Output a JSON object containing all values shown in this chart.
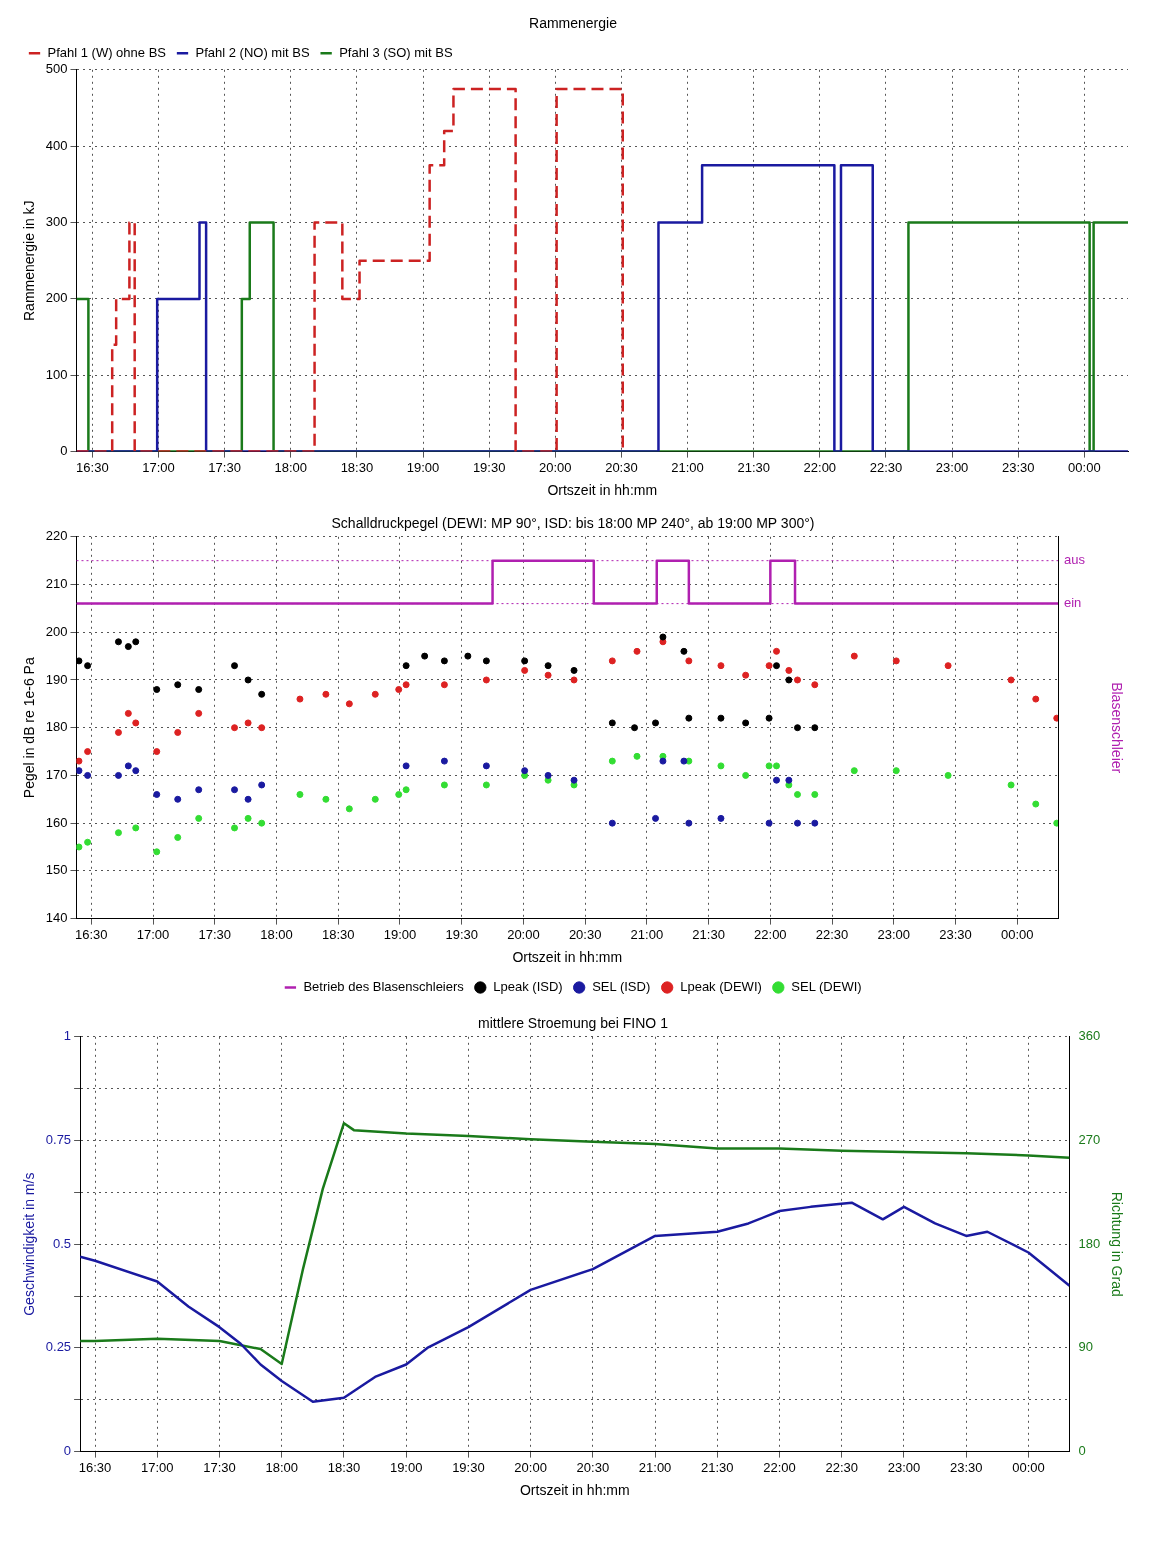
{
  "chart_data": [
    {
      "type": "step",
      "title": "Rammenergie",
      "xlabel": "Ortszeit in hh:mm",
      "ylabel": "Rammenergie in kJ",
      "xlim": [
        16.38,
        24.33
      ],
      "xticks": [
        {
          "value": 16.5,
          "label": "16:30"
        },
        {
          "value": 17,
          "label": "17:00"
        },
        {
          "value": 17.5,
          "label": "17:30"
        },
        {
          "value": 18,
          "label": "18:00"
        },
        {
          "value": 18.5,
          "label": "18:30"
        },
        {
          "value": 19,
          "label": "19:00"
        },
        {
          "value": 19.5,
          "label": "19:30"
        },
        {
          "value": 20,
          "label": "20:00"
        },
        {
          "value": 20.5,
          "label": "20:30"
        },
        {
          "value": 21,
          "label": "21:00"
        },
        {
          "value": 21.5,
          "label": "21:30"
        },
        {
          "value": 22,
          "label": "22:00"
        },
        {
          "value": 22.5,
          "label": "22:30"
        },
        {
          "value": 23,
          "label": "23:00"
        },
        {
          "value": 23.5,
          "label": "23:30"
        },
        {
          "value": 24,
          "label": "00:00"
        }
      ],
      "ylim": [
        0,
        500
      ],
      "yticks": [
        0,
        100,
        200,
        300,
        400,
        500
      ],
      "grid": true,
      "legend": "top left",
      "series": [
        {
          "name": "Pfahl 1 (W) ohne BS",
          "color": "#cc2222",
          "line_style": "dashed",
          "x": [
            16.38,
            16.65,
            16.68,
            16.78,
            16.82,
            18.18,
            18.39,
            18.52,
            19.05,
            19.16,
            19.23,
            19.7,
            20.01,
            20.51
          ],
          "values": [
            0,
            140,
            200,
            300,
            0,
            300,
            200,
            250,
            375,
            420,
            475,
            0,
            475,
            0
          ]
        },
        {
          "name": "Pfahl 2 (NO) mit BS",
          "color": "#1a1aa0",
          "x": [
            16.38,
            16.99,
            17.31,
            17.36,
            20.78,
            21.11,
            22.11,
            22.16,
            22.4,
            24.33
          ],
          "values": [
            0,
            200,
            300,
            0,
            300,
            375,
            0,
            375,
            0,
            0
          ]
        },
        {
          "name": "Pfahl 3 (SO) mit BS",
          "color": "#1a7a1a",
          "x": [
            16.38,
            16.47,
            17.63,
            17.69,
            17.87,
            22.67,
            24.04,
            24.07,
            24.33
          ],
          "values": [
            200,
            0,
            200,
            300,
            0,
            300,
            0,
            300,
            300
          ]
        }
      ]
    },
    {
      "type": "scatter",
      "title": "Schalldruckpegel (DEWI: MP 90°, ISD: bis 18:00 MP 240°, ab 19:00 MP 300°)",
      "xlabel": "Ortszeit in hh:mm",
      "ylabel": "Pegel in dB re 1e-6 Pa",
      "y2label": "Blasenschleier",
      "xlim": [
        16.38,
        24.33
      ],
      "xticks": [
        {
          "value": 16.5,
          "label": "16:30"
        },
        {
          "value": 17,
          "label": "17:00"
        },
        {
          "value": 17.5,
          "label": "17:30"
        },
        {
          "value": 18,
          "label": "18:00"
        },
        {
          "value": 18.5,
          "label": "18:30"
        },
        {
          "value": 19,
          "label": "19:00"
        },
        {
          "value": 19.5,
          "label": "19:30"
        },
        {
          "value": 20,
          "label": "20:00"
        },
        {
          "value": 20.5,
          "label": "20:30"
        },
        {
          "value": 21,
          "label": "21:00"
        },
        {
          "value": 21.5,
          "label": "21:30"
        },
        {
          "value": 22,
          "label": "22:00"
        },
        {
          "value": 22.5,
          "label": "22:30"
        },
        {
          "value": 23,
          "label": "23:00"
        },
        {
          "value": 23.5,
          "label": "23:30"
        },
        {
          "value": 24,
          "label": "00:00"
        }
      ],
      "ylim": [
        140,
        220
      ],
      "yticks": [
        140,
        150,
        160,
        170,
        180,
        190,
        200,
        210,
        220
      ],
      "grid": true,
      "legend": "bottom",
      "ref_lines": [
        {
          "axis": "y",
          "value": 206,
          "label": "ein",
          "color": "#b020b0",
          "line_style": "dotted"
        },
        {
          "axis": "y",
          "value": 215,
          "label": "aus",
          "color": "#b020b0",
          "line_style": "dotted"
        }
      ],
      "series": [
        {
          "name": "Betrieb des Blasenschleiers",
          "type": "step",
          "color": "#b020b0",
          "x": [
            16.38,
            19.75,
            20.57,
            21.08,
            21.34,
            22.0,
            22.2,
            24.33
          ],
          "values": [
            206,
            215,
            206,
            215,
            206,
            215,
            206,
            206
          ]
        },
        {
          "name": "Lpeak (ISD)",
          "marker": "circle",
          "color": "#000000",
          "x": [
            16.4,
            16.47,
            16.72,
            16.8,
            16.86,
            17.03,
            17.2,
            17.37,
            17.66,
            17.77,
            17.88,
            19.05,
            19.2,
            19.36,
            19.55,
            19.7,
            20.01,
            20.2,
            20.41,
            20.72,
            20.9,
            21.07,
            21.13,
            21.3,
            21.34,
            21.6,
            21.8,
            21.99,
            22.05,
            22.15,
            22.22,
            22.36
          ],
          "values": [
            194,
            193,
            198,
            197,
            198,
            188,
            189,
            188,
            193,
            190,
            187,
            193,
            195,
            194,
            195,
            194,
            194,
            193,
            192,
            181,
            180,
            181,
            199,
            196,
            182,
            182,
            181,
            182,
            193,
            190,
            180,
            180
          ]
        },
        {
          "name": "SEL (ISD)",
          "marker": "circle",
          "color": "#1a1aa0",
          "x": [
            16.4,
            16.47,
            16.72,
            16.8,
            16.86,
            17.03,
            17.2,
            17.37,
            17.66,
            17.77,
            17.88,
            19.05,
            19.36,
            19.7,
            20.01,
            20.2,
            20.41,
            20.72,
            21.07,
            21.13,
            21.3,
            21.34,
            21.6,
            21.99,
            22.05,
            22.15,
            22.22,
            22.36
          ],
          "values": [
            171,
            170,
            170,
            172,
            171,
            166,
            165,
            167,
            167,
            165,
            168,
            172,
            173,
            172,
            171,
            170,
            169,
            160,
            161,
            173,
            173,
            160,
            161,
            160,
            169,
            169,
            160,
            160
          ]
        },
        {
          "name": "Lpeak (DEWI)",
          "marker": "circle",
          "color": "#dd2222",
          "x": [
            16.4,
            16.47,
            16.72,
            16.8,
            16.86,
            17.03,
            17.2,
            17.37,
            17.66,
            17.77,
            17.88,
            18.19,
            18.4,
            18.59,
            18.8,
            18.99,
            19.05,
            19.36,
            19.7,
            20.01,
            20.2,
            20.41,
            20.72,
            20.92,
            21.13,
            21.34,
            21.6,
            21.8,
            21.99,
            22.05,
            22.15,
            22.22,
            22.36,
            22.68,
            23.02,
            23.44,
            23.95,
            24.15,
            24.32
          ],
          "values": [
            173,
            175,
            179,
            183,
            181,
            175,
            179,
            183,
            180,
            181,
            180,
            186,
            187,
            185,
            187,
            188,
            189,
            189,
            190,
            192,
            191,
            190,
            194,
            196,
            198,
            194,
            193,
            191,
            193,
            196,
            192,
            190,
            189,
            195,
            194,
            193,
            190,
            186,
            182
          ]
        },
        {
          "name": "SEL (DEWI)",
          "marker": "circle",
          "color": "#33dd33",
          "x": [
            16.4,
            16.47,
            16.72,
            16.86,
            17.03,
            17.2,
            17.37,
            17.66,
            17.77,
            17.88,
            18.19,
            18.4,
            18.59,
            18.8,
            18.99,
            19.05,
            19.36,
            19.7,
            20.01,
            20.2,
            20.41,
            20.72,
            20.92,
            21.13,
            21.34,
            21.6,
            21.8,
            21.99,
            22.05,
            22.15,
            22.22,
            22.36,
            22.68,
            23.02,
            23.44,
            23.95,
            24.15,
            24.32
          ],
          "values": [
            155,
            156,
            158,
            159,
            154,
            157,
            161,
            159,
            161,
            160,
            166,
            165,
            163,
            165,
            166,
            167,
            168,
            168,
            170,
            169,
            168,
            173,
            174,
            174,
            173,
            172,
            170,
            172,
            172,
            168,
            166,
            166,
            171,
            171,
            170,
            168,
            164,
            160
          ]
        }
      ]
    },
    {
      "type": "line",
      "title": "mittlere Stroemung bei FINO 1",
      "xlabel": "Ortszeit in hh:mm",
      "ylabel": "Geschwindigkeit in m/s",
      "y2label": "Richtung in Grad",
      "xlim": [
        16.38,
        24.33
      ],
      "xticks": [
        {
          "value": 16.5,
          "label": "16:30"
        },
        {
          "value": 17,
          "label": "17:00"
        },
        {
          "value": 17.5,
          "label": "17:30"
        },
        {
          "value": 18,
          "label": "18:00"
        },
        {
          "value": 18.5,
          "label": "18:30"
        },
        {
          "value": 19,
          "label": "19:00"
        },
        {
          "value": 19.5,
          "label": "19:30"
        },
        {
          "value": 20,
          "label": "20:00"
        },
        {
          "value": 20.5,
          "label": "20:30"
        },
        {
          "value": 21,
          "label": "21:00"
        },
        {
          "value": 21.5,
          "label": "21:30"
        },
        {
          "value": 22,
          "label": "22:00"
        },
        {
          "value": 22.5,
          "label": "22:30"
        },
        {
          "value": 23,
          "label": "23:00"
        },
        {
          "value": 23.5,
          "label": "23:30"
        },
        {
          "value": 24,
          "label": "00:00"
        }
      ],
      "ylim": [
        0,
        1
      ],
      "yticks": [
        0,
        {
          "value": 0.125,
          "label": null
        },
        0.25,
        {
          "value": 0.375,
          "label": null
        },
        0.5,
        {
          "value": 0.625,
          "label": null
        },
        0.75,
        {
          "value": 0.875,
          "label": null
        },
        1
      ],
      "y2lim": [
        0,
        360
      ],
      "y2ticks": [
        0,
        90,
        180,
        270,
        360
      ],
      "grid": true,
      "legend": false,
      "series": [
        {
          "color": "#1a1aa0",
          "x": [
            16.38,
            16.5,
            17.0,
            17.25,
            17.5,
            17.67,
            17.83,
            18.0,
            18.25,
            18.5,
            18.75,
            19.0,
            19.17,
            19.5,
            20.0,
            20.5,
            21.0,
            21.5,
            21.75,
            22.0,
            22.25,
            22.58,
            22.83,
            23.0,
            23.25,
            23.5,
            23.67,
            24.0,
            24.33
          ],
          "values": [
            0.47,
            0.46,
            0.41,
            0.35,
            0.3,
            0.26,
            0.21,
            0.17,
            0.12,
            0.13,
            0.18,
            0.21,
            0.25,
            0.3,
            0.39,
            0.44,
            0.52,
            0.53,
            0.55,
            0.58,
            0.59,
            0.6,
            0.56,
            0.59,
            0.55,
            0.52,
            0.53,
            0.48,
            0.4
          ]
        },
        {
          "axis": "y2",
          "color": "#1a7a1a",
          "x": [
            16.38,
            16.5,
            17.0,
            17.5,
            17.83,
            18.0,
            18.17,
            18.33,
            18.5,
            18.58,
            19.0,
            19.5,
            20.0,
            20.5,
            21.0,
            21.5,
            22.0,
            22.5,
            23.0,
            23.5,
            24.0,
            24.33
          ],
          "values": [
            96,
            96,
            98,
            96,
            89,
            76,
            158,
            228,
            285,
            279,
            276,
            274,
            271,
            269,
            267,
            263,
            263,
            261,
            260,
            259,
            257,
            255
          ]
        }
      ]
    }
  ]
}
